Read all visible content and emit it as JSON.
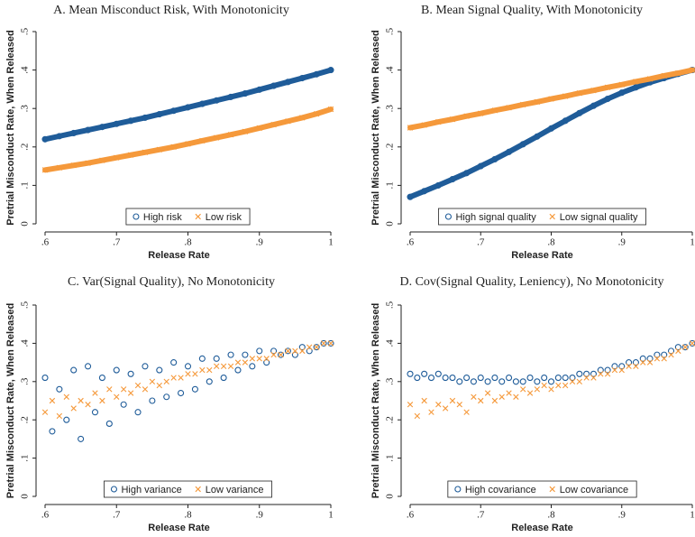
{
  "chart_data": [
    {
      "type": "line",
      "title": "A. Mean Misconduct Risk, With Monotonicity",
      "x_label": "Release Rate",
      "y_label": "Pretrial Misconduct Rate, When Released",
      "xlim": [
        0.6,
        1
      ],
      "ylim": [
        0,
        0.5
      ],
      "xticks": [
        {
          "value": 0.6,
          "label": ".6"
        },
        {
          "value": 0.7,
          "label": ".7"
        },
        {
          "value": 0.8,
          "label": ".8"
        },
        {
          "value": 0.9,
          "label": ".9"
        },
        1
      ],
      "yticks": [
        0,
        {
          "value": 0.1,
          "label": ".1"
        },
        {
          "value": 0.2,
          "label": ".2"
        },
        {
          "value": 0.3,
          "label": ".3"
        },
        {
          "value": 0.4,
          "label": ".4"
        },
        {
          "value": 0.5,
          "label": ".5"
        }
      ],
      "x": [
        0.6,
        0.62,
        0.64,
        0.66,
        0.68,
        0.7,
        0.72,
        0.74,
        0.76,
        0.78,
        0.8,
        0.82,
        0.84,
        0.86,
        0.88,
        0.9,
        0.92,
        0.94,
        0.96,
        0.98,
        1
      ],
      "series": [
        {
          "name": "High risk",
          "color": "#1f5c99",
          "marker": "circle",
          "values": [
            0.22,
            0.228,
            0.236,
            0.244,
            0.252,
            0.26,
            0.268,
            0.276,
            0.285,
            0.294,
            0.303,
            0.312,
            0.321,
            0.33,
            0.339,
            0.349,
            0.359,
            0.369,
            0.379,
            0.389,
            0.4
          ]
        },
        {
          "name": "Low risk",
          "color": "#f5993b",
          "marker": "x",
          "values": [
            0.14,
            0.146,
            0.152,
            0.158,
            0.165,
            0.172,
            0.179,
            0.186,
            0.193,
            0.2,
            0.208,
            0.216,
            0.224,
            0.232,
            0.24,
            0.249,
            0.258,
            0.267,
            0.276,
            0.286,
            0.298
          ]
        }
      ]
    },
    {
      "type": "line",
      "title": "B. Mean Signal Quality, With Monotonicity",
      "x_label": "Release Rate",
      "y_label": "Pretrial Misconduct Rate, When Released",
      "xlim": [
        0.6,
        1
      ],
      "ylim": [
        0,
        0.5
      ],
      "xticks": [
        {
          "value": 0.6,
          "label": ".6"
        },
        {
          "value": 0.7,
          "label": ".7"
        },
        {
          "value": 0.8,
          "label": ".8"
        },
        {
          "value": 0.9,
          "label": ".9"
        },
        1
      ],
      "yticks": [
        0,
        {
          "value": 0.1,
          "label": ".1"
        },
        {
          "value": 0.2,
          "label": ".2"
        },
        {
          "value": 0.3,
          "label": ".3"
        },
        {
          "value": 0.4,
          "label": ".4"
        },
        {
          "value": 0.5,
          "label": ".5"
        }
      ],
      "x": [
        0.6,
        0.62,
        0.64,
        0.66,
        0.68,
        0.7,
        0.72,
        0.74,
        0.76,
        0.78,
        0.8,
        0.82,
        0.84,
        0.86,
        0.88,
        0.9,
        0.92,
        0.94,
        0.96,
        0.98,
        1
      ],
      "series": [
        {
          "name": "High signal quality",
          "color": "#1f5c99",
          "marker": "circle",
          "values": [
            0.07,
            0.085,
            0.1,
            0.116,
            0.132,
            0.15,
            0.168,
            0.187,
            0.207,
            0.227,
            0.248,
            0.268,
            0.288,
            0.307,
            0.325,
            0.341,
            0.355,
            0.368,
            0.379,
            0.39,
            0.4
          ]
        },
        {
          "name": "Low signal quality",
          "color": "#f5993b",
          "marker": "x",
          "values": [
            0.25,
            0.257,
            0.265,
            0.272,
            0.28,
            0.287,
            0.295,
            0.302,
            0.31,
            0.317,
            0.325,
            0.332,
            0.34,
            0.347,
            0.355,
            0.362,
            0.37,
            0.377,
            0.385,
            0.392,
            0.4
          ]
        }
      ]
    },
    {
      "type": "scatter",
      "title": "C. Var(Signal Quality), No Monotonicity",
      "x_label": "Release Rate",
      "y_label": "Pretrial Misconduct Rate, When Released",
      "xlim": [
        0.6,
        1
      ],
      "ylim": [
        0,
        0.5
      ],
      "xticks": [
        {
          "value": 0.6,
          "label": ".6"
        },
        {
          "value": 0.7,
          "label": ".7"
        },
        {
          "value": 0.8,
          "label": ".8"
        },
        {
          "value": 0.9,
          "label": ".9"
        },
        1
      ],
      "yticks": [
        0,
        {
          "value": 0.1,
          "label": ".1"
        },
        {
          "value": 0.2,
          "label": ".2"
        },
        {
          "value": 0.3,
          "label": ".3"
        },
        {
          "value": 0.4,
          "label": ".4"
        },
        {
          "value": 0.5,
          "label": ".5"
        }
      ],
      "x": [
        0.6,
        0.61,
        0.62,
        0.63,
        0.64,
        0.65,
        0.66,
        0.67,
        0.68,
        0.69,
        0.7,
        0.71,
        0.72,
        0.73,
        0.74,
        0.75,
        0.76,
        0.77,
        0.78,
        0.79,
        0.8,
        0.81,
        0.82,
        0.83,
        0.84,
        0.85,
        0.86,
        0.87,
        0.88,
        0.89,
        0.9,
        0.91,
        0.92,
        0.93,
        0.94,
        0.95,
        0.96,
        0.97,
        0.98,
        0.99,
        1
      ],
      "series": [
        {
          "name": "High variance",
          "color": "#1f5c99",
          "marker": "circle",
          "values": [
            0.31,
            0.17,
            0.28,
            0.2,
            0.33,
            0.15,
            0.34,
            0.22,
            0.31,
            0.19,
            0.33,
            0.24,
            0.32,
            0.22,
            0.34,
            0.25,
            0.33,
            0.26,
            0.35,
            0.27,
            0.34,
            0.28,
            0.36,
            0.3,
            0.36,
            0.31,
            0.37,
            0.33,
            0.37,
            0.34,
            0.38,
            0.35,
            0.38,
            0.37,
            0.38,
            0.37,
            0.39,
            0.38,
            0.39,
            0.4,
            0.4
          ]
        },
        {
          "name": "Low variance",
          "color": "#f5993b",
          "marker": "x",
          "values": [
            0.22,
            0.25,
            0.21,
            0.26,
            0.23,
            0.25,
            0.24,
            0.27,
            0.25,
            0.28,
            0.26,
            0.28,
            0.27,
            0.29,
            0.28,
            0.3,
            0.29,
            0.3,
            0.31,
            0.31,
            0.32,
            0.32,
            0.33,
            0.33,
            0.34,
            0.34,
            0.34,
            0.35,
            0.35,
            0.36,
            0.36,
            0.36,
            0.37,
            0.37,
            0.38,
            0.38,
            0.38,
            0.39,
            0.39,
            0.4,
            0.4
          ]
        }
      ]
    },
    {
      "type": "scatter",
      "title": "D. Cov(Signal Quality, Leniency), No Monotonicity",
      "x_label": "Release Rate",
      "y_label": "Pretrial Misconduct Rate, When Released",
      "xlim": [
        0.6,
        1
      ],
      "ylim": [
        0,
        0.5
      ],
      "xticks": [
        {
          "value": 0.6,
          "label": ".6"
        },
        {
          "value": 0.7,
          "label": ".7"
        },
        {
          "value": 0.8,
          "label": ".8"
        },
        {
          "value": 0.9,
          "label": ".9"
        },
        1
      ],
      "yticks": [
        0,
        {
          "value": 0.1,
          "label": ".1"
        },
        {
          "value": 0.2,
          "label": ".2"
        },
        {
          "value": 0.3,
          "label": ".3"
        },
        {
          "value": 0.4,
          "label": ".4"
        },
        {
          "value": 0.5,
          "label": ".5"
        }
      ],
      "x": [
        0.6,
        0.61,
        0.62,
        0.63,
        0.64,
        0.65,
        0.66,
        0.67,
        0.68,
        0.69,
        0.7,
        0.71,
        0.72,
        0.73,
        0.74,
        0.75,
        0.76,
        0.77,
        0.78,
        0.79,
        0.8,
        0.81,
        0.82,
        0.83,
        0.84,
        0.85,
        0.86,
        0.87,
        0.88,
        0.89,
        0.9,
        0.91,
        0.92,
        0.93,
        0.94,
        0.95,
        0.96,
        0.97,
        0.98,
        0.99,
        1
      ],
      "series": [
        {
          "name": "High covariance",
          "color": "#1f5c99",
          "marker": "circle",
          "values": [
            0.32,
            0.31,
            0.32,
            0.31,
            0.32,
            0.31,
            0.31,
            0.3,
            0.31,
            0.3,
            0.31,
            0.3,
            0.31,
            0.3,
            0.31,
            0.3,
            0.3,
            0.31,
            0.3,
            0.31,
            0.3,
            0.31,
            0.31,
            0.31,
            0.32,
            0.32,
            0.32,
            0.33,
            0.33,
            0.34,
            0.34,
            0.35,
            0.35,
            0.36,
            0.36,
            0.37,
            0.37,
            0.38,
            0.39,
            0.39,
            0.4
          ]
        },
        {
          "name": "Low covariance",
          "color": "#f5993b",
          "marker": "x",
          "values": [
            0.24,
            0.21,
            0.25,
            0.22,
            0.24,
            0.23,
            0.25,
            0.24,
            0.22,
            0.26,
            0.25,
            0.27,
            0.25,
            0.26,
            0.27,
            0.26,
            0.28,
            0.27,
            0.28,
            0.29,
            0.28,
            0.29,
            0.29,
            0.3,
            0.3,
            0.31,
            0.31,
            0.32,
            0.32,
            0.33,
            0.33,
            0.34,
            0.34,
            0.35,
            0.35,
            0.36,
            0.36,
            0.37,
            0.38,
            0.39,
            0.4
          ]
        }
      ]
    }
  ]
}
